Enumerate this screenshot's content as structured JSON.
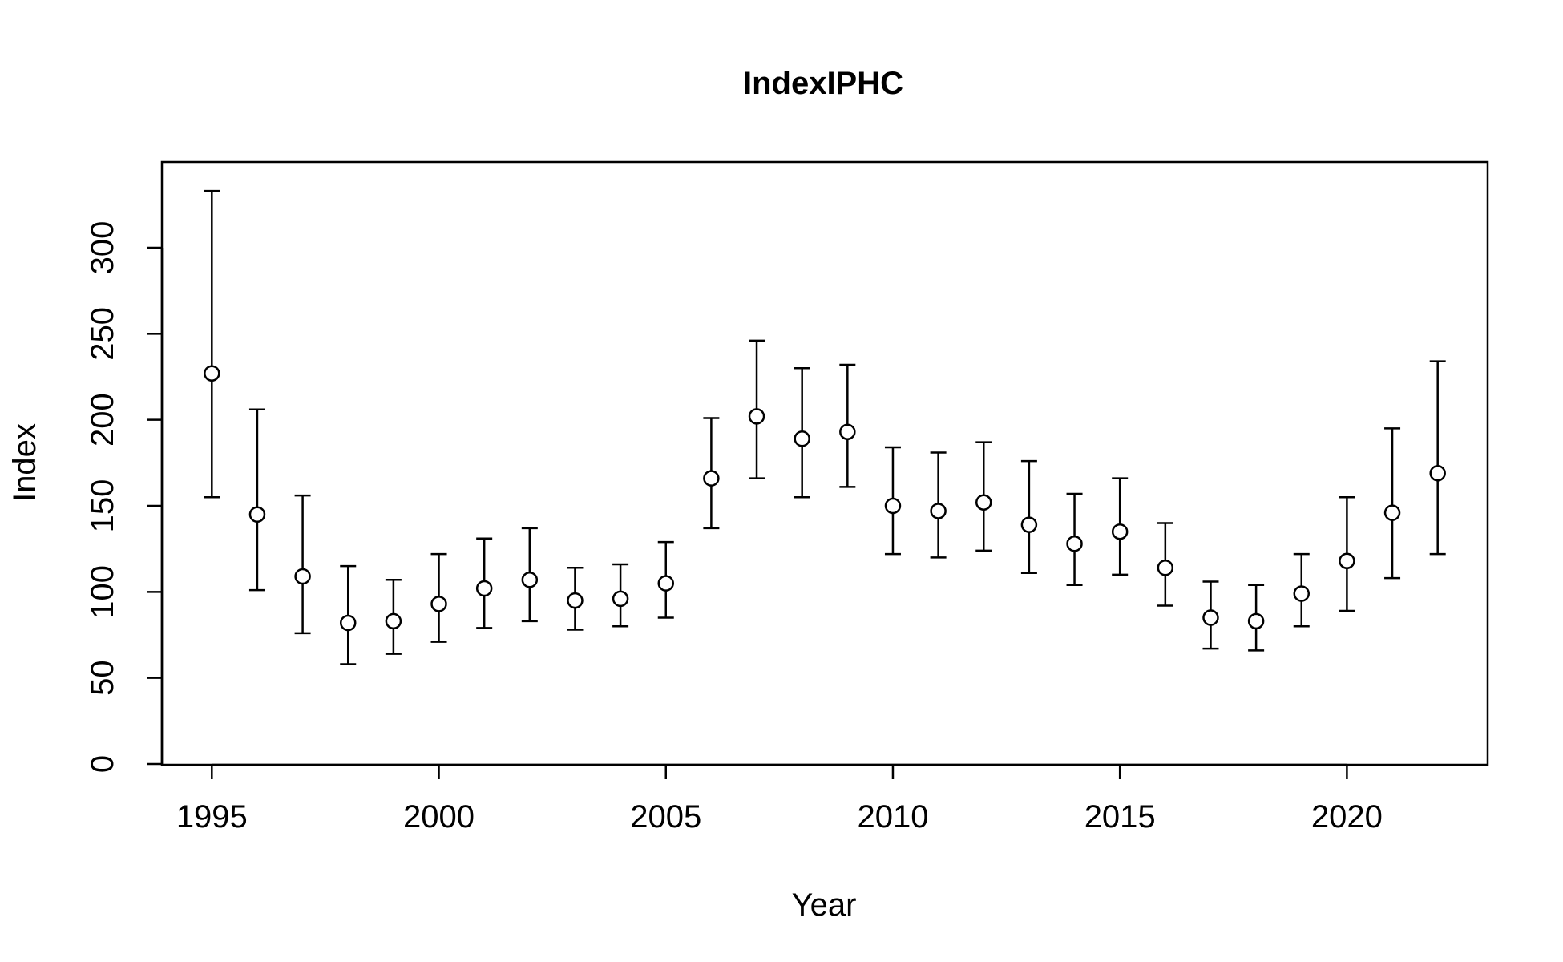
{
  "chart_data": {
    "type": "scatter",
    "title": "IndexIPHC",
    "xlabel": "Year",
    "ylabel": "Index",
    "xlim": [
      1993.9,
      2023.1
    ],
    "ylim": [
      0,
      350
    ],
    "x_ticks": [
      1995,
      2000,
      2005,
      2010,
      2015,
      2020
    ],
    "y_ticks": [
      0,
      50,
      100,
      150,
      200,
      250,
      300
    ],
    "grid": false,
    "legend": "none",
    "error_bars": true,
    "series": [
      {
        "x": [
          1995,
          1996,
          1997,
          1998,
          1999,
          2000,
          2001,
          2002,
          2003,
          2004,
          2005,
          2006,
          2007,
          2008,
          2009,
          2010,
          2011,
          2012,
          2013,
          2014,
          2015,
          2016,
          2017,
          2018,
          2019,
          2020,
          2021,
          2022
        ],
        "y": [
          227,
          145,
          109,
          82,
          83,
          93,
          102,
          107,
          95,
          96,
          105,
          166,
          202,
          189,
          193,
          150,
          147,
          152,
          139,
          128,
          135,
          114,
          85,
          83,
          99,
          118,
          146,
          169
        ],
        "lower": [
          155,
          101,
          76,
          58,
          64,
          71,
          79,
          83,
          78,
          80,
          85,
          137,
          166,
          155,
          161,
          122,
          120,
          124,
          111,
          104,
          110,
          92,
          67,
          66,
          80,
          89,
          108,
          122
        ],
        "upper": [
          333,
          206,
          156,
          115,
          107,
          122,
          131,
          137,
          114,
          116,
          129,
          201,
          246,
          230,
          232,
          184,
          181,
          187,
          176,
          157,
          166,
          140,
          106,
          104,
          122,
          155,
          195,
          234
        ]
      }
    ]
  },
  "colors": {
    "background": "#ffffff",
    "ink": "#000000",
    "marker_fill": "#ffffff"
  }
}
